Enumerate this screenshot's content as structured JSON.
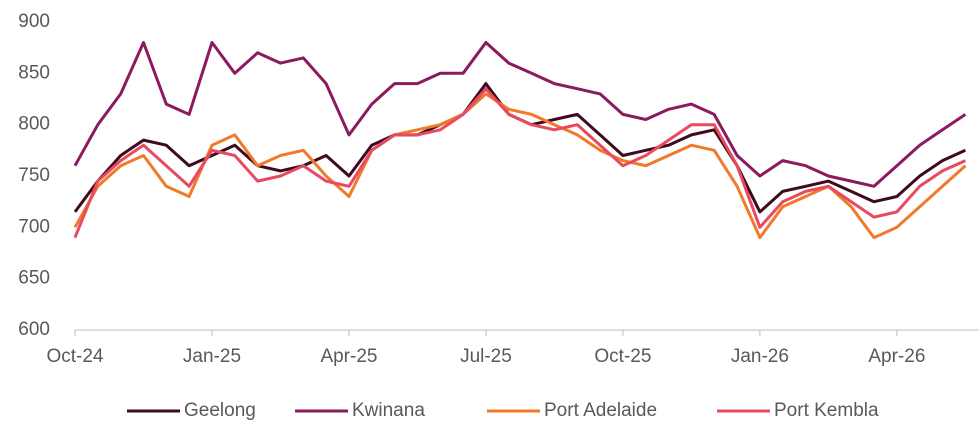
{
  "chart_data": {
    "type": "line",
    "categories": [
      "Oct-24",
      null,
      null,
      null,
      null,
      null,
      "Jan-25",
      null,
      null,
      null,
      null,
      null,
      "Apr-25",
      null,
      null,
      null,
      null,
      null,
      "Jul-25",
      null,
      null,
      null,
      null,
      null,
      "Oct-25",
      null,
      null,
      null,
      null,
      null,
      "Jan-26",
      null,
      null,
      null,
      null,
      null,
      "Apr-26",
      null,
      null,
      null
    ],
    "series": [
      {
        "name": "Geelong",
        "color": "#3d0a1e",
        "values": [
          715,
          745,
          770,
          785,
          780,
          760,
          770,
          780,
          760,
          755,
          760,
          770,
          750,
          780,
          790,
          790,
          800,
          810,
          840,
          810,
          800,
          805,
          810,
          790,
          770,
          775,
          780,
          790,
          795,
          760,
          715,
          735,
          740,
          745,
          735,
          725,
          730,
          750,
          765,
          775
        ]
      },
      {
        "name": "Kwinana",
        "color": "#8b1a5e",
        "values": [
          760,
          800,
          830,
          880,
          820,
          810,
          880,
          850,
          870,
          860,
          865,
          840,
          790,
          820,
          840,
          840,
          850,
          850,
          880,
          860,
          850,
          840,
          835,
          830,
          810,
          805,
          815,
          820,
          810,
          770,
          750,
          765,
          760,
          750,
          745,
          740,
          760,
          780,
          795,
          810
        ]
      },
      {
        "name": "Port Adelaide",
        "color": "#f07a2a",
        "values": [
          700,
          740,
          760,
          770,
          740,
          730,
          780,
          790,
          760,
          770,
          775,
          750,
          730,
          775,
          790,
          795,
          800,
          810,
          830,
          815,
          810,
          800,
          790,
          775,
          765,
          760,
          770,
          780,
          775,
          740,
          690,
          720,
          730,
          740,
          720,
          690,
          700,
          720,
          740,
          760
        ]
      },
      {
        "name": "Port Kembla",
        "color": "#e84a5f",
        "values": [
          690,
          745,
          765,
          780,
          760,
          740,
          775,
          770,
          745,
          750,
          760,
          745,
          740,
          775,
          790,
          790,
          795,
          810,
          835,
          810,
          800,
          795,
          800,
          780,
          760,
          770,
          785,
          800,
          800,
          760,
          700,
          725,
          735,
          740,
          725,
          710,
          715,
          740,
          755,
          765
        ]
      }
    ],
    "ylim": [
      600,
      900
    ],
    "yticks": [
      600,
      650,
      700,
      750,
      800,
      850,
      900
    ],
    "grid": false,
    "legend": "bottom"
  }
}
